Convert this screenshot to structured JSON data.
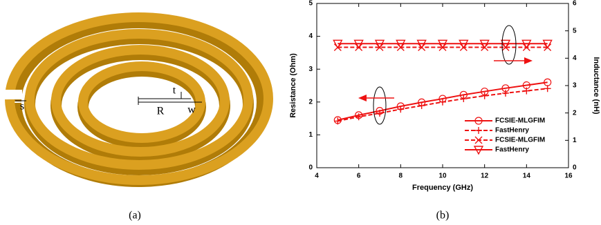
{
  "panel_a": {
    "labels": [
      "s",
      "t",
      "R",
      "w"
    ],
    "caption": "(a)"
  },
  "chart_data": {
    "type": "line",
    "caption": "(b)",
    "xlabel": "Frequency (GHz)",
    "ylabel": "Resistance (Ohm)",
    "y2label": "Inductance (nH)",
    "x": [
      5,
      6,
      7,
      8,
      9,
      10,
      11,
      12,
      13,
      14,
      15
    ],
    "xlim": [
      4,
      16
    ],
    "xticks": [
      4,
      6,
      8,
      10,
      12,
      14,
      16
    ],
    "ylim": [
      0,
      5
    ],
    "yticks": [
      0,
      1,
      2,
      3,
      4,
      5
    ],
    "y2lim": [
      0,
      6
    ],
    "y2ticks": [
      0,
      1,
      2,
      3,
      4,
      5,
      6
    ],
    "series": [
      {
        "name": "FCSIE-MLGFIM",
        "color": "#ee1111",
        "marker": "circle",
        "linestyle": "solid",
        "values": [
          1.45,
          1.6,
          1.73,
          1.87,
          1.99,
          2.1,
          2.22,
          2.32,
          2.42,
          2.51,
          2.6
        ]
      },
      {
        "name": "FastHenry",
        "color": "#ee1111",
        "marker": "plus",
        "linestyle": "dashed",
        "values": [
          1.42,
          1.55,
          1.66,
          1.78,
          1.89,
          2.0,
          2.1,
          2.19,
          2.27,
          2.34,
          2.41
        ]
      },
      {
        "name": "FCSIE-MLGFIM",
        "color": "#ee1111",
        "marker": "x",
        "linestyle": "dashed",
        "axis": "y2",
        "values": [
          4.4,
          4.4,
          4.4,
          4.4,
          4.4,
          4.4,
          4.4,
          4.4,
          4.4,
          4.4,
          4.4
        ]
      },
      {
        "name": "FastHenry",
        "color": "#ee1111",
        "marker": "triangle-down",
        "linestyle": "solid",
        "axis": "y2",
        "values": [
          4.53,
          4.53,
          4.53,
          4.53,
          4.53,
          4.53,
          4.53,
          4.53,
          4.53,
          4.53,
          4.53
        ]
      }
    ]
  }
}
